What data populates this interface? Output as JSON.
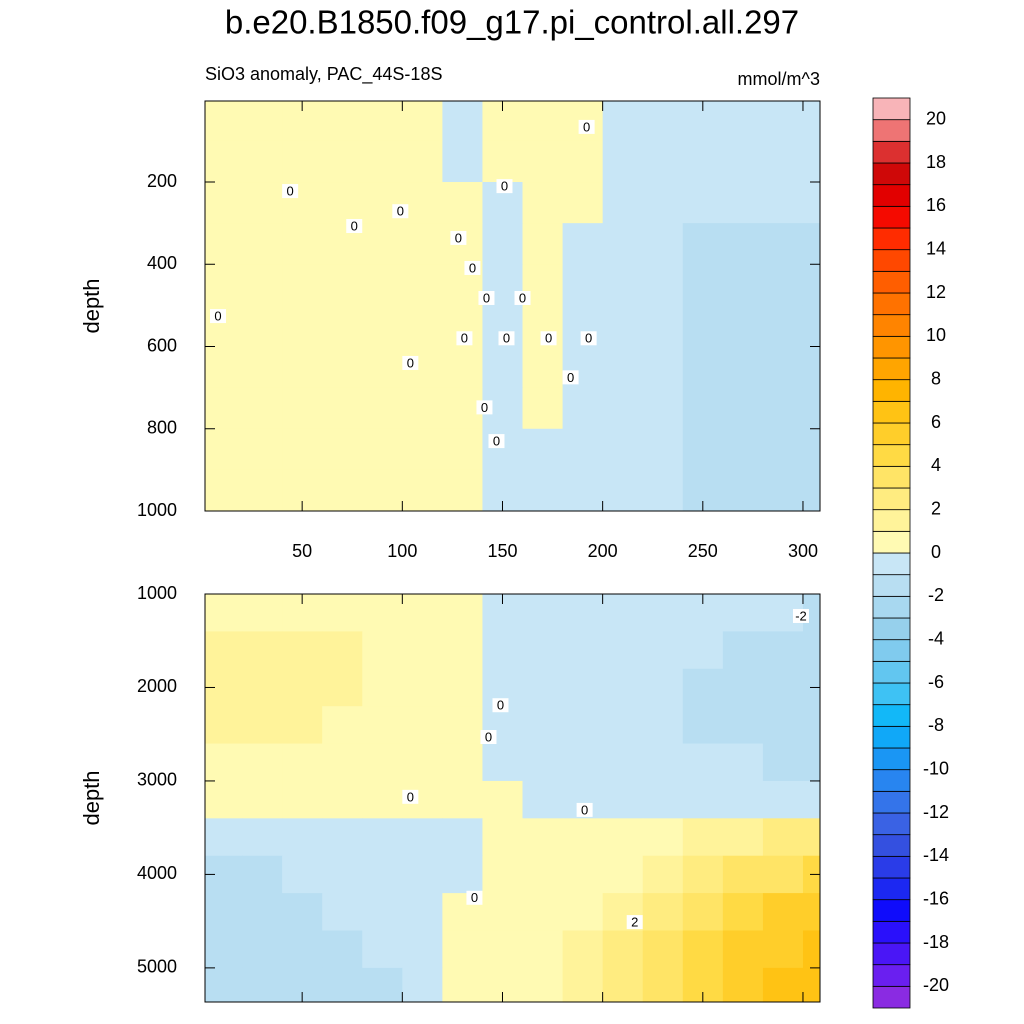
{
  "chart_data": {
    "type": "contour",
    "title": "b.e20.B1850.f09_g17.pi_control.all.297",
    "subtitle": "SiO3 anomaly, PAC_44S-18S",
    "units": "mmol/m^3",
    "colorbar": {
      "levels": [
        -20,
        -19,
        -18,
        -17,
        -16,
        -15,
        -14,
        -13,
        -12,
        -11,
        -10,
        -9,
        -8,
        -7,
        -6,
        -5,
        -4,
        -3,
        -2,
        -1,
        0,
        1,
        2,
        3,
        4,
        5,
        6,
        7,
        8,
        9,
        10,
        11,
        12,
        13,
        14,
        15,
        16,
        17,
        18,
        19,
        20
      ],
      "colors": [
        "#8a2be2",
        "#6a1ff0",
        "#4a16f6",
        "#2a10fb",
        "#0f0cfb",
        "#1c28f2",
        "#2a3ce8",
        "#3450e0",
        "#3a62e4",
        "#3474ea",
        "#2885f0",
        "#1a96f4",
        "#10a8f8",
        "#12b8f8",
        "#3ec2f4",
        "#62c6f0",
        "#80cbee",
        "#96d0ec",
        "#a8d8f0",
        "#b8def2",
        "#c8e6f6",
        "#fffab3",
        "#fff39a",
        "#ffec80",
        "#ffe466",
        "#ffda44",
        "#ffce2a",
        "#ffc314",
        "#ffb400",
        "#ffa500",
        "#ff9500",
        "#ff8400",
        "#ff7200",
        "#ff5e00",
        "#ff4800",
        "#ff2c00",
        "#f50a00",
        "#e20000",
        "#cf0808",
        "#dc3030",
        "#ee7474",
        "#f8b4b8"
      ],
      "ticks": [
        20,
        18,
        16,
        14,
        12,
        10,
        8,
        6,
        4,
        2,
        0,
        -2,
        -4,
        -6,
        -8,
        -10,
        -12,
        -14,
        -16,
        -18,
        -20
      ]
    },
    "panels": [
      {
        "ylabel": "depth",
        "xlim": [
          1.5,
          308.5
        ],
        "ylim": [
          3,
          1000
        ],
        "xticks": [
          50,
          100,
          150,
          200,
          250,
          300
        ],
        "show_xtick_labels": true,
        "yticks": [
          200,
          400,
          600,
          800,
          1000
        ],
        "x": [
          10,
          30,
          50,
          70,
          90,
          110,
          130,
          150,
          170,
          190,
          210,
          230,
          250,
          270,
          290,
          310
        ],
        "depth": [
          50,
          150,
          250,
          350,
          450,
          550,
          650,
          750,
          850,
          950
        ],
        "z": [
          [
            0.5,
            0.5,
            0.5,
            0.5,
            0.5,
            0.5,
            -0.3,
            0.4,
            0.3,
            0.3,
            -0.5,
            -0.5,
            -0.5,
            -0.5,
            -0.5,
            -0.5
          ],
          [
            0.5,
            0.5,
            0.5,
            0.5,
            0.5,
            0.5,
            -0.3,
            0.4,
            0.3,
            0.3,
            -0.5,
            -0.5,
            -0.5,
            -0.5,
            -0.5,
            -0.5
          ],
          [
            0.5,
            0.5,
            0.5,
            0.5,
            0.5,
            0.5,
            0.3,
            -0.3,
            0.4,
            0.3,
            -0.5,
            -0.5,
            -0.5,
            -0.5,
            -0.5,
            -0.5
          ],
          [
            0.5,
            0.5,
            0.5,
            0.5,
            0.5,
            0.5,
            0.3,
            -0.3,
            0.4,
            -0.3,
            -0.5,
            -0.5,
            -1.2,
            -1.2,
            -1.2,
            -1.2
          ],
          [
            0.5,
            0.5,
            0.5,
            0.5,
            0.5,
            0.5,
            0.3,
            -0.3,
            0.4,
            -0.3,
            -0.5,
            -0.5,
            -1.2,
            -1.2,
            -1.2,
            -1.2
          ],
          [
            0.5,
            0.5,
            0.5,
            0.5,
            0.5,
            0.5,
            0.3,
            -0.3,
            0.4,
            -0.3,
            -0.5,
            -0.5,
            -1.2,
            -1.2,
            -1.2,
            -1.2
          ],
          [
            0.5,
            0.5,
            0.5,
            0.5,
            0.5,
            0.5,
            0.3,
            -0.3,
            0.4,
            -0.3,
            -0.5,
            -0.5,
            -1.2,
            -1.2,
            -1.2,
            -1.2
          ],
          [
            0.5,
            0.5,
            0.5,
            0.5,
            0.5,
            0.5,
            0.3,
            -0.3,
            0.4,
            -0.3,
            -0.5,
            -0.5,
            -1.2,
            -1.2,
            -1.2,
            -1.2
          ],
          [
            0.5,
            0.5,
            0.5,
            0.5,
            0.5,
            0.5,
            0.3,
            -0.3,
            -0.3,
            -0.3,
            -0.5,
            -0.5,
            -1.2,
            -1.2,
            -1.2,
            -1.2
          ],
          [
            0.5,
            0.5,
            0.5,
            0.5,
            0.5,
            0.5,
            0.3,
            -0.3,
            -0.3,
            -0.3,
            -0.5,
            -0.5,
            -1.2,
            -1.2,
            -1.2,
            -1.2
          ]
        ],
        "contour_labels": [
          {
            "label": 0,
            "x": 44,
            "y": 222
          },
          {
            "label": 0,
            "x": 76,
            "y": 307
          },
          {
            "label": 0,
            "x": 99,
            "y": 271
          },
          {
            "label": 0,
            "x": 104,
            "y": 640
          },
          {
            "label": 0,
            "x": 8,
            "y": 526
          },
          {
            "label": 0,
            "x": 128,
            "y": 336
          },
          {
            "label": 0,
            "x": 135,
            "y": 409
          },
          {
            "label": 0,
            "x": 151,
            "y": 210
          },
          {
            "label": 0,
            "x": 192,
            "y": 66
          },
          {
            "label": 0,
            "x": 142,
            "y": 482
          },
          {
            "label": 0,
            "x": 160,
            "y": 482
          },
          {
            "label": 0,
            "x": 131,
            "y": 580
          },
          {
            "label": 0,
            "x": 152,
            "y": 580
          },
          {
            "label": 0,
            "x": 173,
            "y": 580
          },
          {
            "label": 0,
            "x": 193,
            "y": 580
          },
          {
            "label": 0,
            "x": 184,
            "y": 675
          },
          {
            "label": 0,
            "x": 141,
            "y": 748
          },
          {
            "label": 0,
            "x": 147,
            "y": 830
          }
        ]
      },
      {
        "ylabel": "depth",
        "xlim": [
          1.5,
          308.5
        ],
        "ylim": [
          1000,
          5365
        ],
        "xticks": [
          50,
          100,
          150,
          200,
          250,
          300
        ],
        "show_xtick_labels": false,
        "yticks": [
          1000,
          2000,
          3000,
          4000,
          5000
        ],
        "x": [
          10,
          30,
          50,
          70,
          90,
          110,
          130,
          150,
          170,
          190,
          210,
          230,
          250,
          270,
          290,
          310
        ],
        "depth": [
          1200,
          1600,
          2000,
          2400,
          2800,
          3200,
          3600,
          4000,
          4400,
          4800,
          5200
        ],
        "z": [
          [
            0.5,
            0.5,
            0.5,
            0.5,
            0.5,
            0.5,
            0.5,
            -0.5,
            -0.5,
            -0.5,
            -0.5,
            -0.5,
            -0.5,
            -0.5,
            -0.5,
            -1.3
          ],
          [
            1.3,
            1.3,
            1.3,
            1.3,
            0.5,
            0.5,
            0.5,
            -0.5,
            -0.5,
            -0.5,
            -0.5,
            -0.5,
            -0.5,
            -1.3,
            -1.3,
            -1.3
          ],
          [
            1.3,
            1.3,
            1.3,
            1.3,
            0.5,
            0.5,
            0.5,
            -0.5,
            -0.5,
            -0.5,
            -0.5,
            -0.5,
            -1.3,
            -1.3,
            -1.3,
            -1.3
          ],
          [
            1.3,
            1.3,
            1.3,
            0.5,
            0.5,
            0.5,
            0.5,
            -0.5,
            -0.5,
            -0.5,
            -0.5,
            -0.5,
            -1.3,
            -1.3,
            -1.3,
            -1.3
          ],
          [
            0.5,
            0.5,
            0.5,
            0.5,
            0.5,
            0.5,
            0.5,
            -0.5,
            -0.5,
            -0.5,
            -0.5,
            -0.5,
            -0.5,
            -0.5,
            -1.3,
            -1.3
          ],
          [
            0.5,
            0.5,
            0.5,
            0.5,
            0.5,
            0.5,
            0.5,
            0.5,
            -0.5,
            -0.5,
            -0.5,
            -0.5,
            -0.5,
            -0.5,
            -0.5,
            -0.5
          ],
          [
            -0.5,
            -0.5,
            -0.5,
            -0.5,
            -0.5,
            -0.5,
            -0.5,
            0.5,
            0.5,
            0.5,
            0.5,
            0.5,
            1.3,
            1.3,
            2.5,
            2.5
          ],
          [
            -1.3,
            -1.3,
            -0.5,
            -0.5,
            -0.5,
            -0.5,
            -0.5,
            0.5,
            0.5,
            0.5,
            0.5,
            1.3,
            2.5,
            3.5,
            3.5,
            4.5
          ],
          [
            -1.3,
            -1.3,
            -1.3,
            -0.5,
            -0.5,
            -0.5,
            0.5,
            0.5,
            0.5,
            0.5,
            1.3,
            2.5,
            3.5,
            4.5,
            5.5,
            5.5
          ],
          [
            -1.3,
            -1.3,
            -1.3,
            -1.3,
            -0.5,
            -0.5,
            0.5,
            0.5,
            0.5,
            1.3,
            2.5,
            3.5,
            4.5,
            5.5,
            5.5,
            6.5
          ],
          [
            -1.3,
            -1.3,
            -1.3,
            -1.3,
            -1.3,
            -0.5,
            0.5,
            0.5,
            0.5,
            1.3,
            2.5,
            3.5,
            4.5,
            5.5,
            6.5,
            6.5
          ]
        ],
        "contour_labels": [
          {
            "label": -2,
            "x": 299,
            "y": 1235
          },
          {
            "label": 0,
            "x": 104,
            "y": 3170
          },
          {
            "label": 0,
            "x": 191,
            "y": 3310
          },
          {
            "label": 0,
            "x": 136,
            "y": 4250
          },
          {
            "label": 2,
            "x": 216,
            "y": 4510
          },
          {
            "label": 0,
            "x": 149,
            "y": 2190
          },
          {
            "label": 0,
            "x": 143,
            "y": 2530
          }
        ]
      }
    ]
  }
}
